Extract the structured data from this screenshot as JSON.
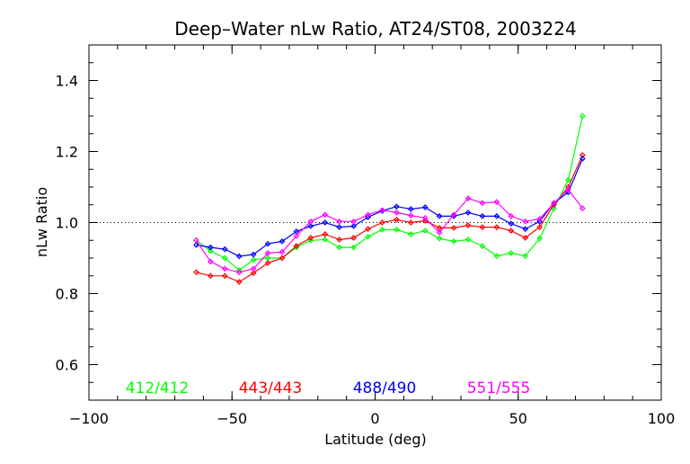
{
  "chart_data": {
    "type": "line",
    "title": "Deep–Water nLw Ratio, AT24/ST08, 2003224",
    "xlabel": "Latitude (deg)",
    "ylabel": "nLw Ratio",
    "xlim": [
      -100,
      100
    ],
    "ylim": [
      0.5,
      1.5
    ],
    "xticks": [
      -100,
      -50,
      0,
      50,
      100
    ],
    "xtick_labels": [
      "−100",
      "−50",
      "0",
      "50",
      "100"
    ],
    "yticks": [
      0.6,
      0.8,
      1.0,
      1.2,
      1.4
    ],
    "ytick_labels": [
      "0.6",
      "0.8",
      "1.0",
      "1.2",
      "1.4"
    ],
    "reference_line": 1.0,
    "grid": false,
    "legend_position": "bottom",
    "x": [
      -62.5,
      -57.5,
      -52.5,
      -47.5,
      -42.5,
      -37.5,
      -32.5,
      -27.5,
      -22.5,
      -17.5,
      -12.5,
      -7.5,
      -2.5,
      2.5,
      7.5,
      12.5,
      17.5,
      22.5,
      27.5,
      32.5,
      37.5,
      42.5,
      47.5,
      52.5,
      57.5,
      62.5,
      67.5,
      72.5
    ],
    "series": [
      {
        "name": "412/412",
        "color": "#00ff00",
        "values": [
          0.95,
          0.92,
          0.9,
          0.866,
          0.895,
          0.9,
          0.9,
          0.93,
          0.95,
          0.952,
          0.93,
          0.93,
          0.96,
          0.98,
          0.98,
          0.967,
          0.977,
          0.955,
          0.947,
          0.952,
          0.934,
          0.906,
          0.914,
          0.906,
          0.955,
          1.04,
          1.12,
          1.3
        ]
      },
      {
        "name": "443/443",
        "color": "#ff0000",
        "values": [
          0.86,
          0.85,
          0.85,
          0.833,
          0.858,
          0.886,
          0.9,
          0.934,
          0.957,
          0.967,
          0.952,
          0.957,
          0.982,
          1.0,
          1.008,
          1.0,
          1.005,
          0.985,
          0.985,
          0.992,
          0.987,
          0.987,
          0.977,
          0.957,
          0.987,
          1.05,
          1.1,
          1.19
        ]
      },
      {
        "name": "488/490",
        "color": "#0000ff",
        "values": [
          0.937,
          0.93,
          0.925,
          0.905,
          0.91,
          0.94,
          0.947,
          0.975,
          0.99,
          1.0,
          0.987,
          0.99,
          1.015,
          1.033,
          1.045,
          1.038,
          1.043,
          1.018,
          1.018,
          1.028,
          1.018,
          1.018,
          0.997,
          0.982,
          1.003,
          1.055,
          1.085,
          1.18
        ]
      },
      {
        "name": "551/555",
        "color": "#ff00ff",
        "values": [
          0.95,
          0.89,
          0.87,
          0.86,
          0.87,
          0.914,
          0.917,
          0.962,
          1.003,
          1.022,
          1.003,
          1.003,
          1.022,
          1.035,
          1.028,
          1.02,
          1.013,
          0.972,
          1.022,
          1.068,
          1.055,
          1.058,
          1.018,
          1.003,
          1.01,
          1.055,
          1.093,
          1.04
        ]
      }
    ]
  }
}
